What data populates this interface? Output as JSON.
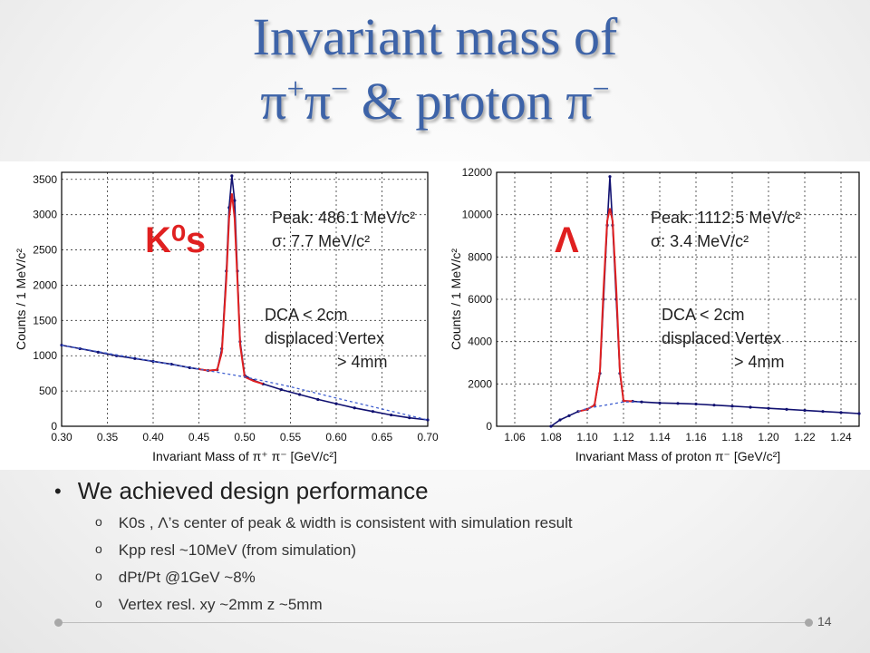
{
  "slide": {
    "title_line1": "Invariant mass of",
    "title_line2_pre": "π",
    "title_line2_sup1": "+",
    "title_line2_mid": "π",
    "title_line2_sup2": "−",
    "title_line2_post": " & proton π",
    "title_line2_sup3": "−",
    "bullet_main": "We achieved design performance",
    "sub_bullets": [
      "K0s , Λ’s center of peak & width is consistent with simulation result",
      "Kpp resl ~10MeV (from simulation)",
      "dPt/Pt @1GeV ~8%",
      "Vertex resl.  xy ~2mm   z ~5mm"
    ],
    "sub_marker": "o",
    "page_number": "14"
  },
  "colors": {
    "title": "#3d63a8",
    "data": "#101070",
    "fit": "#e02020",
    "background_fit": "#4060d0",
    "particle_label": "#e02020"
  },
  "chart_data": [
    {
      "type": "line",
      "particle_label": "K⁰s",
      "annotations": [
        "Peak: 486.1 MeV/c²",
        "σ:      7.7 MeV/c²",
        "DCA < 2cm",
        "displaced Vertex",
        "> 4mm"
      ],
      "xlabel": "Invariant Mass of π⁺ π⁻ [GeV/c²]",
      "ylabel": "Counts / 1 MeV/c²",
      "xlim": [
        0.3,
        0.7
      ],
      "ylim": [
        0,
        3600
      ],
      "xticks": [
        "0.30",
        "0.35",
        "0.40",
        "0.45",
        "0.50",
        "0.55",
        "0.60",
        "0.65",
        "0.70"
      ],
      "yticks": [
        "0",
        "500",
        "1000",
        "1500",
        "2000",
        "2500",
        "3000",
        "3500"
      ],
      "grid": true,
      "series": [
        {
          "x": [
            0.3,
            0.32,
            0.34,
            0.36,
            0.38,
            0.4,
            0.42,
            0.44,
            0.46,
            0.47,
            0.475,
            0.48,
            0.483,
            0.486,
            0.489,
            0.492,
            0.495,
            0.5,
            0.51,
            0.52,
            0.54,
            0.56,
            0.58,
            0.6,
            0.62,
            0.64,
            0.66,
            0.68,
            0.7
          ],
          "y": [
            1150,
            1100,
            1050,
            1000,
            960,
            920,
            880,
            830,
            790,
            800,
            1100,
            2200,
            3100,
            3550,
            3200,
            2200,
            1200,
            720,
            650,
            600,
            520,
            450,
            380,
            320,
            260,
            210,
            160,
            120,
            90
          ]
        },
        {
          "x": [
            0.45,
            0.46,
            0.47,
            0.475,
            0.48,
            0.483,
            0.486,
            0.489,
            0.492,
            0.495,
            0.5,
            0.51,
            0.52
          ],
          "y": [
            810,
            790,
            800,
            1050,
            2100,
            2950,
            3300,
            2950,
            2100,
            1150,
            700,
            640,
            600
          ]
        },
        {
          "x": [
            0.3,
            0.4,
            0.5,
            0.55,
            0.6,
            0.7
          ],
          "y": [
            1150,
            920,
            700,
            560,
            400,
            90
          ]
        }
      ]
    },
    {
      "type": "line",
      "particle_label": "Λ",
      "annotations": [
        "Peak: 1112.5 MeV/c²",
        "σ:      3.4 MeV/c²",
        "DCA < 2cm",
        "displaced Vertex",
        "> 4mm"
      ],
      "xlabel": "Invariant Mass of proton π⁻ [GeV/c²]",
      "ylabel": "Counts / 1 MeV/c²",
      "xlim": [
        1.05,
        1.25
      ],
      "ylim": [
        0,
        12000
      ],
      "xticks": [
        "1.06",
        "1.08",
        "1.10",
        "1.12",
        "1.14",
        "1.16",
        "1.18",
        "1.20",
        "1.22",
        "1.24"
      ],
      "yticks": [
        "0",
        "2000",
        "4000",
        "6000",
        "8000",
        "10000",
        "12000"
      ],
      "grid": true,
      "series": [
        {
          "x": [
            1.08,
            1.085,
            1.09,
            1.095,
            1.1,
            1.104,
            1.107,
            1.109,
            1.111,
            1.1125,
            1.114,
            1.116,
            1.118,
            1.12,
            1.125,
            1.13,
            1.14,
            1.15,
            1.16,
            1.17,
            1.18,
            1.19,
            1.2,
            1.21,
            1.22,
            1.23,
            1.24,
            1.25
          ],
          "y": [
            0,
            300,
            500,
            700,
            800,
            1000,
            2500,
            6000,
            9500,
            11800,
            9500,
            6000,
            2500,
            1200,
            1180,
            1150,
            1100,
            1080,
            1050,
            1000,
            950,
            900,
            850,
            800,
            750,
            700,
            650,
            600
          ]
        },
        {
          "x": [
            1.095,
            1.1,
            1.104,
            1.107,
            1.109,
            1.111,
            1.1125,
            1.114,
            1.116,
            1.118,
            1.12,
            1.125
          ],
          "y": [
            700,
            800,
            1000,
            2600,
            6500,
            9700,
            10300,
            9700,
            6500,
            2600,
            1200,
            1180
          ]
        },
        {
          "x": [
            1.095,
            1.1,
            1.11,
            1.12,
            1.13
          ],
          "y": [
            700,
            850,
            1000,
            1150,
            1150
          ]
        }
      ]
    }
  ]
}
